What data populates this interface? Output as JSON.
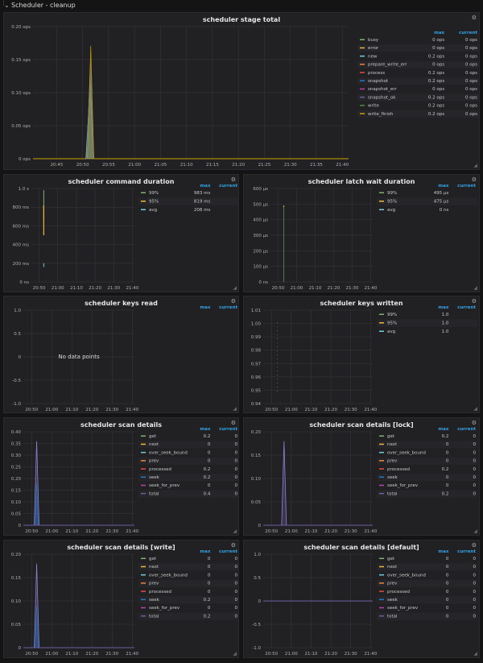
{
  "row": {
    "title": "Scheduler - cleanup"
  },
  "legend_headers": {
    "max": "max",
    "current": "current"
  },
  "panels": [
    {
      "id": "p1",
      "title": "scheduler stage total",
      "y_ticks": [
        "0.20 ops",
        "0.15 ops",
        "0.10 ops",
        "0.05 ops",
        "0 ops"
      ],
      "x_ticks": [
        "20:45",
        "20:50",
        "20:55",
        "21:00",
        "21:05",
        "21:10",
        "21:15",
        "21:20",
        "21:25",
        "21:30",
        "21:35",
        "21:40"
      ],
      "legend": [
        {
          "name": "busy",
          "max": "0 ops",
          "current": "0 ops",
          "color": "#7eb26d"
        },
        {
          "name": "error",
          "max": "0 ops",
          "current": "0 ops",
          "color": "#eab839"
        },
        {
          "name": "new",
          "max": "0.2 ops",
          "current": "0 ops",
          "color": "#6ed0e0"
        },
        {
          "name": "prepare_write_err",
          "max": "0 ops",
          "current": "0 ops",
          "color": "#ef843c"
        },
        {
          "name": "process",
          "max": "0.2 ops",
          "current": "0 ops",
          "color": "#e24d42"
        },
        {
          "name": "snapshot",
          "max": "0.2 ops",
          "current": "0 ops",
          "color": "#1f78c1"
        },
        {
          "name": "snapshot_err",
          "max": "0 ops",
          "current": "0 ops",
          "color": "#ba43a9"
        },
        {
          "name": "snapshot_ok",
          "max": "0.2 ops",
          "current": "0 ops",
          "color": "#705da0"
        },
        {
          "name": "write",
          "max": "0.2 ops",
          "current": "0 ops",
          "color": "#508642"
        },
        {
          "name": "write_finish",
          "max": "0.2 ops",
          "current": "0 ops",
          "color": "#cca300"
        }
      ]
    },
    {
      "id": "p2",
      "title": "scheduler command duration",
      "y_ticks": [
        "1.0 s",
        "800 ms",
        "600 ms",
        "400 ms",
        "200 ms",
        "0 ns"
      ],
      "x_ticks": [
        "20:50",
        "21:00",
        "21:10",
        "21:20",
        "21:30",
        "21:40"
      ],
      "legend": [
        {
          "name": "99%",
          "max": "983 ms",
          "current": "",
          "color": "#7eb26d"
        },
        {
          "name": "95%",
          "max": "819 ms",
          "current": "",
          "color": "#eab839"
        },
        {
          "name": "avg",
          "max": "208 ms",
          "current": "",
          "color": "#6ed0e0"
        }
      ]
    },
    {
      "id": "p3",
      "title": "scheduler latch wait duration",
      "y_ticks": [
        "600 µs",
        "500 µs",
        "400 µs",
        "300 µs",
        "200 µs",
        "100 µs",
        "0 ns"
      ],
      "x_ticks": [
        "20:50",
        "21:00",
        "21:10",
        "21:20",
        "21:30",
        "21:40"
      ],
      "legend": [
        {
          "name": "99%",
          "max": "495 µs",
          "current": "",
          "color": "#7eb26d"
        },
        {
          "name": "95%",
          "max": "475 µs",
          "current": "",
          "color": "#eab839"
        },
        {
          "name": "avg",
          "max": "0 ns",
          "current": "",
          "color": "#6ed0e0"
        }
      ]
    },
    {
      "id": "p4",
      "title": "scheduler keys read",
      "y_ticks": [
        "1.0",
        "0.5",
        "0",
        "-0.5",
        "-1.0"
      ],
      "x_ticks": [
        "20:50",
        "21:00",
        "21:10",
        "21:20",
        "21:30",
        "21:40"
      ],
      "nodata": "No data points",
      "legend": []
    },
    {
      "id": "p5",
      "title": "scheduler keys written",
      "y_ticks": [
        "1.01",
        "1.00",
        "0.99",
        "0.98",
        "0.97",
        "0.96",
        "0.95",
        "0.94"
      ],
      "x_ticks": [
        "20:50",
        "21:00",
        "21:10",
        "21:20",
        "21:30",
        "21:40"
      ],
      "legend": [
        {
          "name": "99%",
          "max": "1.0",
          "current": "",
          "color": "#7eb26d"
        },
        {
          "name": "95%",
          "max": "1.0",
          "current": "",
          "color": "#eab839"
        },
        {
          "name": "avg",
          "max": "1.0",
          "current": "",
          "color": "#6ed0e0"
        }
      ]
    },
    {
      "id": "p6",
      "title": "scheduler scan details",
      "y_ticks": [
        "0.40",
        "0.35",
        "0.30",
        "0.25",
        "0.20",
        "0.15",
        "0.10",
        "0.05",
        "0"
      ],
      "x_ticks": [
        "20:50",
        "21:00",
        "21:10",
        "21:20",
        "21:30",
        "21:40"
      ],
      "legend": [
        {
          "name": "get",
          "max": "0.2",
          "current": "0",
          "color": "#7eb26d"
        },
        {
          "name": "next",
          "max": "0",
          "current": "0",
          "color": "#eab839"
        },
        {
          "name": "over_seek_bound",
          "max": "0",
          "current": "0",
          "color": "#6ed0e0"
        },
        {
          "name": "prev",
          "max": "0",
          "current": "0",
          "color": "#ef843c"
        },
        {
          "name": "processed",
          "max": "0.2",
          "current": "0",
          "color": "#e24d42"
        },
        {
          "name": "seek",
          "max": "0.2",
          "current": "0",
          "color": "#1f78c1"
        },
        {
          "name": "seek_for_prev",
          "max": "0",
          "current": "0",
          "color": "#ba43a9"
        },
        {
          "name": "total",
          "max": "0.4",
          "current": "0",
          "color": "#705da0"
        }
      ]
    },
    {
      "id": "p7",
      "title": "scheduler scan details [lock]",
      "y_ticks": [
        "0.20",
        "0.15",
        "0.10",
        "0.05",
        "0"
      ],
      "x_ticks": [
        "20:50",
        "21:00",
        "21:10",
        "21:20",
        "21:30",
        "21:40"
      ],
      "legend": [
        {
          "name": "get",
          "max": "0.2",
          "current": "0",
          "color": "#7eb26d"
        },
        {
          "name": "next",
          "max": "0",
          "current": "0",
          "color": "#eab839"
        },
        {
          "name": "over_seek_bound",
          "max": "0",
          "current": "0",
          "color": "#6ed0e0"
        },
        {
          "name": "prev",
          "max": "0",
          "current": "0",
          "color": "#ef843c"
        },
        {
          "name": "processed",
          "max": "0.2",
          "current": "0",
          "color": "#e24d42"
        },
        {
          "name": "seek",
          "max": "0",
          "current": "0",
          "color": "#1f78c1"
        },
        {
          "name": "seek_for_prev",
          "max": "0",
          "current": "0",
          "color": "#ba43a9"
        },
        {
          "name": "total",
          "max": "0.2",
          "current": "0",
          "color": "#705da0"
        }
      ]
    },
    {
      "id": "p8",
      "title": "scheduler scan details [write]",
      "y_ticks": [
        "0.20",
        "0.15",
        "0.10",
        "0.05",
        "0"
      ],
      "x_ticks": [
        "20:50",
        "21:00",
        "21:10",
        "21:20",
        "21:30",
        "21:40"
      ],
      "legend": [
        {
          "name": "get",
          "max": "0",
          "current": "0",
          "color": "#7eb26d"
        },
        {
          "name": "next",
          "max": "0",
          "current": "0",
          "color": "#eab839"
        },
        {
          "name": "over_seek_bound",
          "max": "0",
          "current": "0",
          "color": "#6ed0e0"
        },
        {
          "name": "prev",
          "max": "0",
          "current": "0",
          "color": "#ef843c"
        },
        {
          "name": "processed",
          "max": "0",
          "current": "0",
          "color": "#e24d42"
        },
        {
          "name": "seek",
          "max": "0.2",
          "current": "0",
          "color": "#1f78c1"
        },
        {
          "name": "seek_for_prev",
          "max": "0",
          "current": "0",
          "color": "#ba43a9"
        },
        {
          "name": "total",
          "max": "0.2",
          "current": "0",
          "color": "#705da0"
        }
      ]
    },
    {
      "id": "p9",
      "title": "scheduler scan details [default]",
      "y_ticks": [
        "1.0",
        "0.5",
        "0",
        "-0.5",
        "-1.0"
      ],
      "x_ticks": [
        "20:50",
        "21:00",
        "21:10",
        "21:20",
        "21:30",
        "21:40"
      ],
      "legend": [
        {
          "name": "get",
          "max": "0",
          "current": "0",
          "color": "#7eb26d"
        },
        {
          "name": "next",
          "max": "0",
          "current": "0",
          "color": "#eab839"
        },
        {
          "name": "over_seek_bound",
          "max": "0",
          "current": "0",
          "color": "#6ed0e0"
        },
        {
          "name": "prev",
          "max": "0",
          "current": "0",
          "color": "#ef843c"
        },
        {
          "name": "processed",
          "max": "0",
          "current": "0",
          "color": "#e24d42"
        },
        {
          "name": "seek",
          "max": "0",
          "current": "0",
          "color": "#1f78c1"
        },
        {
          "name": "seek_for_prev",
          "max": "0",
          "current": "0",
          "color": "#ba43a9"
        },
        {
          "name": "total",
          "max": "0",
          "current": "0",
          "color": "#705da0"
        }
      ]
    }
  ],
  "chart_data": [
    {
      "type": "area",
      "title": "scheduler stage total",
      "xlabel": "",
      "ylabel": "",
      "ylim": [
        0,
        0.2
      ],
      "y_unit": "ops",
      "x": [
        "20:50",
        "20:51",
        "20:52"
      ],
      "series": [
        {
          "name": "write_finish",
          "values": [
            0,
            0.18,
            0
          ]
        }
      ]
    },
    {
      "type": "line",
      "title": "scheduler command duration",
      "xlabel": "",
      "ylabel": "",
      "ylim_ms": [
        0,
        1000
      ],
      "series": [
        {
          "name": "99%",
          "max_ms": 983
        },
        {
          "name": "95%",
          "max_ms": 819
        },
        {
          "name": "avg",
          "max_ms": 208
        }
      ]
    },
    {
      "type": "line",
      "title": "scheduler latch wait duration",
      "xlabel": "",
      "ylabel": "",
      "ylim_us": [
        0,
        600
      ],
      "series": [
        {
          "name": "99%",
          "max_us": 495
        },
        {
          "name": "95%",
          "max_us": 475
        },
        {
          "name": "avg",
          "max_us": 0
        }
      ]
    },
    {
      "type": "line",
      "title": "scheduler keys read",
      "xlabel": "",
      "ylabel": "",
      "ylim": [
        -1,
        1
      ],
      "series": []
    },
    {
      "type": "line",
      "title": "scheduler keys written",
      "xlabel": "",
      "ylabel": "",
      "ylim": [
        0.94,
        1.01
      ],
      "series": [
        {
          "name": "99%",
          "max": 1.0
        },
        {
          "name": "95%",
          "max": 1.0
        },
        {
          "name": "avg",
          "max": 1.0
        }
      ]
    },
    {
      "type": "area",
      "title": "scheduler scan details",
      "xlabel": "",
      "ylabel": "",
      "ylim": [
        0,
        0.4
      ],
      "series": [
        {
          "name": "total",
          "peak": 0.36
        },
        {
          "name": "seek",
          "peak": 0.18
        }
      ]
    },
    {
      "type": "area",
      "title": "scheduler scan details [lock]",
      "xlabel": "",
      "ylabel": "",
      "ylim": [
        0,
        0.2
      ],
      "series": [
        {
          "name": "total",
          "peak": 0.18
        }
      ]
    },
    {
      "type": "area",
      "title": "scheduler scan details [write]",
      "xlabel": "",
      "ylabel": "",
      "ylim": [
        0,
        0.2
      ],
      "series": [
        {
          "name": "total",
          "peak": 0.18
        },
        {
          "name": "seek",
          "peak": 0.18
        }
      ]
    },
    {
      "type": "line",
      "title": "scheduler scan details [default]",
      "xlabel": "",
      "ylabel": "",
      "ylim": [
        -1,
        1
      ],
      "series": [
        {
          "name": "total",
          "values": [
            0,
            0
          ]
        }
      ]
    }
  ]
}
